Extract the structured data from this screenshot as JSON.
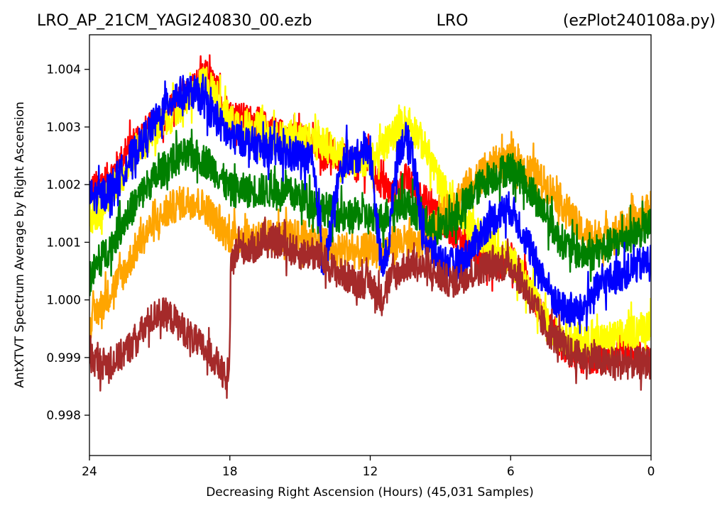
{
  "chart_data": {
    "type": "line",
    "title_left": "LRO_AP_21CM_YAGI240830_00.ezb",
    "title_center": "LRO",
    "title_right": "(ezPlot240108a.py)",
    "xlabel": "Decreasing Right Ascension (Hours) (45,031 Samples)",
    "ylabel": "AntXTVT Spectrum Average by Right Ascension",
    "xlim": [
      24,
      0
    ],
    "ylim": [
      0.9973,
      1.0046
    ],
    "xticks": [
      24,
      18,
      12,
      6,
      0
    ],
    "yticks": [
      0.998,
      0.999,
      1.0,
      1.001,
      1.002,
      1.003,
      1.004
    ],
    "ytick_labels": [
      "0.998",
      "0.999",
      "1.000",
      "1.001",
      "1.002",
      "1.003",
      "1.004"
    ],
    "grid": false,
    "series": [
      {
        "color": "#ff0000",
        "noise": 0.00028,
        "x": [
          24,
          23.5,
          23,
          22.5,
          22,
          21,
          20,
          19,
          18.5,
          18,
          17,
          16,
          15,
          14.5,
          14,
          13.5,
          13,
          12.5,
          12,
          11.5,
          11,
          10.5,
          10,
          9,
          8,
          7,
          6.5,
          6,
          5.5,
          5,
          4.5,
          4,
          3.5,
          3,
          2,
          1,
          0.5,
          0
        ],
        "y": [
          1.0019,
          1.002,
          1.0022,
          1.0025,
          1.0028,
          1.0031,
          1.0035,
          1.0039,
          1.0036,
          1.0032,
          1.0031,
          1.0029,
          1.0028,
          1.0027,
          1.0026,
          1.0025,
          1.0024,
          1.0023,
          1.0024,
          1.002,
          1.0018,
          1.0021,
          1.0019,
          1.0014,
          1.001,
          1.0007,
          1.0006,
          1.0007,
          1.0004,
          1.0,
          0.9996,
          0.9993,
          0.9991,
          0.999,
          0.999,
          0.9992,
          0.999,
          0.9989
        ]
      },
      {
        "color": "#ffff00",
        "noise": 0.0003,
        "x": [
          24,
          23.5,
          23,
          22.5,
          22,
          21,
          20,
          19,
          18.5,
          18,
          17,
          16,
          15,
          14,
          13.5,
          13,
          12.5,
          12,
          11.5,
          11,
          10.5,
          10,
          9.5,
          9,
          8,
          7,
          6.5,
          6,
          5.5,
          5,
          4.5,
          4,
          3,
          2,
          1,
          0.5,
          0
        ],
        "y": [
          1.0014,
          1.0016,
          1.0019,
          1.0022,
          1.0026,
          1.003,
          1.0034,
          1.0038,
          1.0035,
          1.0031,
          1.003,
          1.0028,
          1.0028,
          1.0027,
          1.0026,
          1.0025,
          1.0024,
          1.0024,
          1.0026,
          1.0029,
          1.0031,
          1.0029,
          1.0025,
          1.002,
          1.0014,
          1.001,
          1.0008,
          1.0007,
          1.0004,
          1.0,
          0.9996,
          0.9994,
          0.9993,
          0.9993,
          0.9994,
          0.9995,
          0.9996
        ]
      },
      {
        "color": "#ffa500",
        "noise": 0.0003,
        "x": [
          24,
          23.5,
          23,
          22.5,
          22,
          21.5,
          21,
          20.5,
          20,
          19.5,
          19,
          18.5,
          18,
          17,
          16,
          15,
          14,
          13.5,
          13,
          12.5,
          12,
          11.5,
          11,
          10.5,
          10,
          9,
          8,
          7.5,
          7,
          6.5,
          6,
          5.5,
          5,
          4.5,
          4,
          3.5,
          3,
          2.5,
          2,
          1.5,
          1,
          0.5,
          0
        ],
        "y": [
          0.9996,
          0.9999,
          1.0002,
          1.0005,
          1.0009,
          1.0012,
          1.0014,
          1.0016,
          1.0017,
          1.0017,
          1.0016,
          1.0013,
          1.0011,
          1.0011,
          1.0011,
          1.0011,
          1.001,
          1.0008,
          1.0009,
          1.0008,
          1.0009,
          1.0008,
          1.001,
          1.001,
          1.0009,
          1.0014,
          1.0019,
          1.0021,
          1.0023,
          1.0024,
          1.0024,
          1.0023,
          1.0022,
          1.002,
          1.0018,
          1.0015,
          1.0012,
          1.0011,
          1.0011,
          1.0012,
          1.0013,
          1.0014,
          1.0016
        ]
      },
      {
        "color": "#008000",
        "noise": 0.0003,
        "x": [
          24,
          23.5,
          23,
          22.5,
          22,
          21.5,
          21,
          20.5,
          20,
          19.5,
          19,
          18.5,
          18,
          17,
          16,
          15,
          14.5,
          14,
          13.5,
          13,
          12.5,
          12,
          11.5,
          11,
          10.5,
          10,
          9.5,
          9,
          8.5,
          8,
          7.5,
          7,
          6.5,
          6,
          5.5,
          5,
          4.5,
          4,
          3.5,
          3,
          2.5,
          2,
          1.5,
          1,
          0.5,
          0
        ],
        "y": [
          1.0004,
          1.0007,
          1.001,
          1.0014,
          1.0017,
          1.002,
          1.0022,
          1.0024,
          1.0025,
          1.0025,
          1.0024,
          1.0022,
          1.0019,
          1.0019,
          1.0019,
          1.0018,
          1.0017,
          1.0016,
          1.0015,
          1.0014,
          1.0015,
          1.0014,
          1.0014,
          1.0016,
          1.0017,
          1.0015,
          1.0013,
          1.0012,
          1.0014,
          1.0016,
          1.0019,
          1.0021,
          1.0022,
          1.0023,
          1.0021,
          1.0018,
          1.0015,
          1.0011,
          1.0009,
          1.0008,
          1.0008,
          1.0009,
          1.001,
          1.0011,
          1.0012,
          1.0013
        ]
      },
      {
        "color": "#0000ff",
        "noise": 0.0003,
        "x": [
          24,
          23.5,
          23,
          22.5,
          22,
          21.5,
          21,
          20.5,
          20,
          19.5,
          19,
          18.5,
          18,
          17.5,
          17,
          16.5,
          16,
          15.5,
          15,
          14.5,
          14.2,
          14,
          13.8,
          13.5,
          13.2,
          13,
          12.8,
          12.5,
          12.2,
          12,
          11.8,
          11.5,
          11.2,
          11,
          10.8,
          10.5,
          10.2,
          10,
          9.8,
          9.5,
          9,
          8.5,
          8,
          7.5,
          7,
          6.5,
          6,
          5.5,
          5,
          4.5,
          4,
          3.5,
          3,
          2.5,
          2,
          1.5,
          1,
          0.5,
          0
        ],
        "y": [
          1.0018,
          1.0018,
          1.002,
          1.0023,
          1.0026,
          1.0029,
          1.0032,
          1.0035,
          1.0036,
          1.0036,
          1.0034,
          1.0031,
          1.0028,
          1.0028,
          1.0027,
          1.0026,
          1.0026,
          1.0025,
          1.0025,
          1.0024,
          1.0015,
          1.0006,
          1.0009,
          1.0018,
          1.0023,
          1.0025,
          1.0024,
          1.0025,
          1.0027,
          1.0026,
          1.0017,
          1.0005,
          1.001,
          1.002,
          1.0026,
          1.0028,
          1.0026,
          1.002,
          1.0012,
          1.0009,
          1.0007,
          1.0006,
          1.0007,
          1.001,
          1.0013,
          1.0015,
          1.0016,
          1.0012,
          1.0007,
          1.0003,
          0.9999,
          0.9998,
          0.9998,
          1.0001,
          1.0003,
          1.0004,
          1.0005,
          1.0006,
          1.0007
        ]
      },
      {
        "color": "#a52a2a",
        "noise": 0.00028,
        "x": [
          24,
          23.5,
          23,
          22.5,
          22,
          21.5,
          21,
          20.5,
          20,
          19.5,
          19,
          18.7,
          18.4,
          18.2,
          18.05,
          17.95,
          17.8,
          17.5,
          17,
          16.5,
          16,
          15.5,
          15,
          14.5,
          14,
          13.5,
          13,
          12.5,
          12,
          11.7,
          11.5,
          11.3,
          11,
          10.5,
          10,
          9.5,
          9,
          8.5,
          8,
          7.5,
          7,
          6.5,
          6,
          5.5,
          5,
          4.5,
          4,
          3.5,
          3,
          2.5,
          2,
          1.5,
          1,
          0.5,
          0
        ],
        "y": [
          0.999,
          0.9989,
          0.9989,
          0.9991,
          0.9993,
          0.9996,
          0.9998,
          0.9997,
          0.9995,
          0.9993,
          0.9991,
          0.999,
          0.9988,
          0.9986,
          0.9985,
          1.0005,
          1.0008,
          1.0009,
          1.0009,
          1.001,
          1.001,
          1.0009,
          1.0008,
          1.0008,
          1.0007,
          1.0005,
          1.0004,
          1.0003,
          1.0003,
          1.0001,
          1.0,
          1.0003,
          1.0004,
          1.0006,
          1.0006,
          1.0005,
          1.0004,
          1.0003,
          1.0004,
          1.0005,
          1.0006,
          1.0006,
          1.0006,
          1.0003,
          0.9999,
          0.9995,
          0.9993,
          0.9991,
          0.999,
          0.999,
          0.9989,
          0.9989,
          0.9989,
          0.9989,
          0.9989
        ]
      }
    ]
  }
}
